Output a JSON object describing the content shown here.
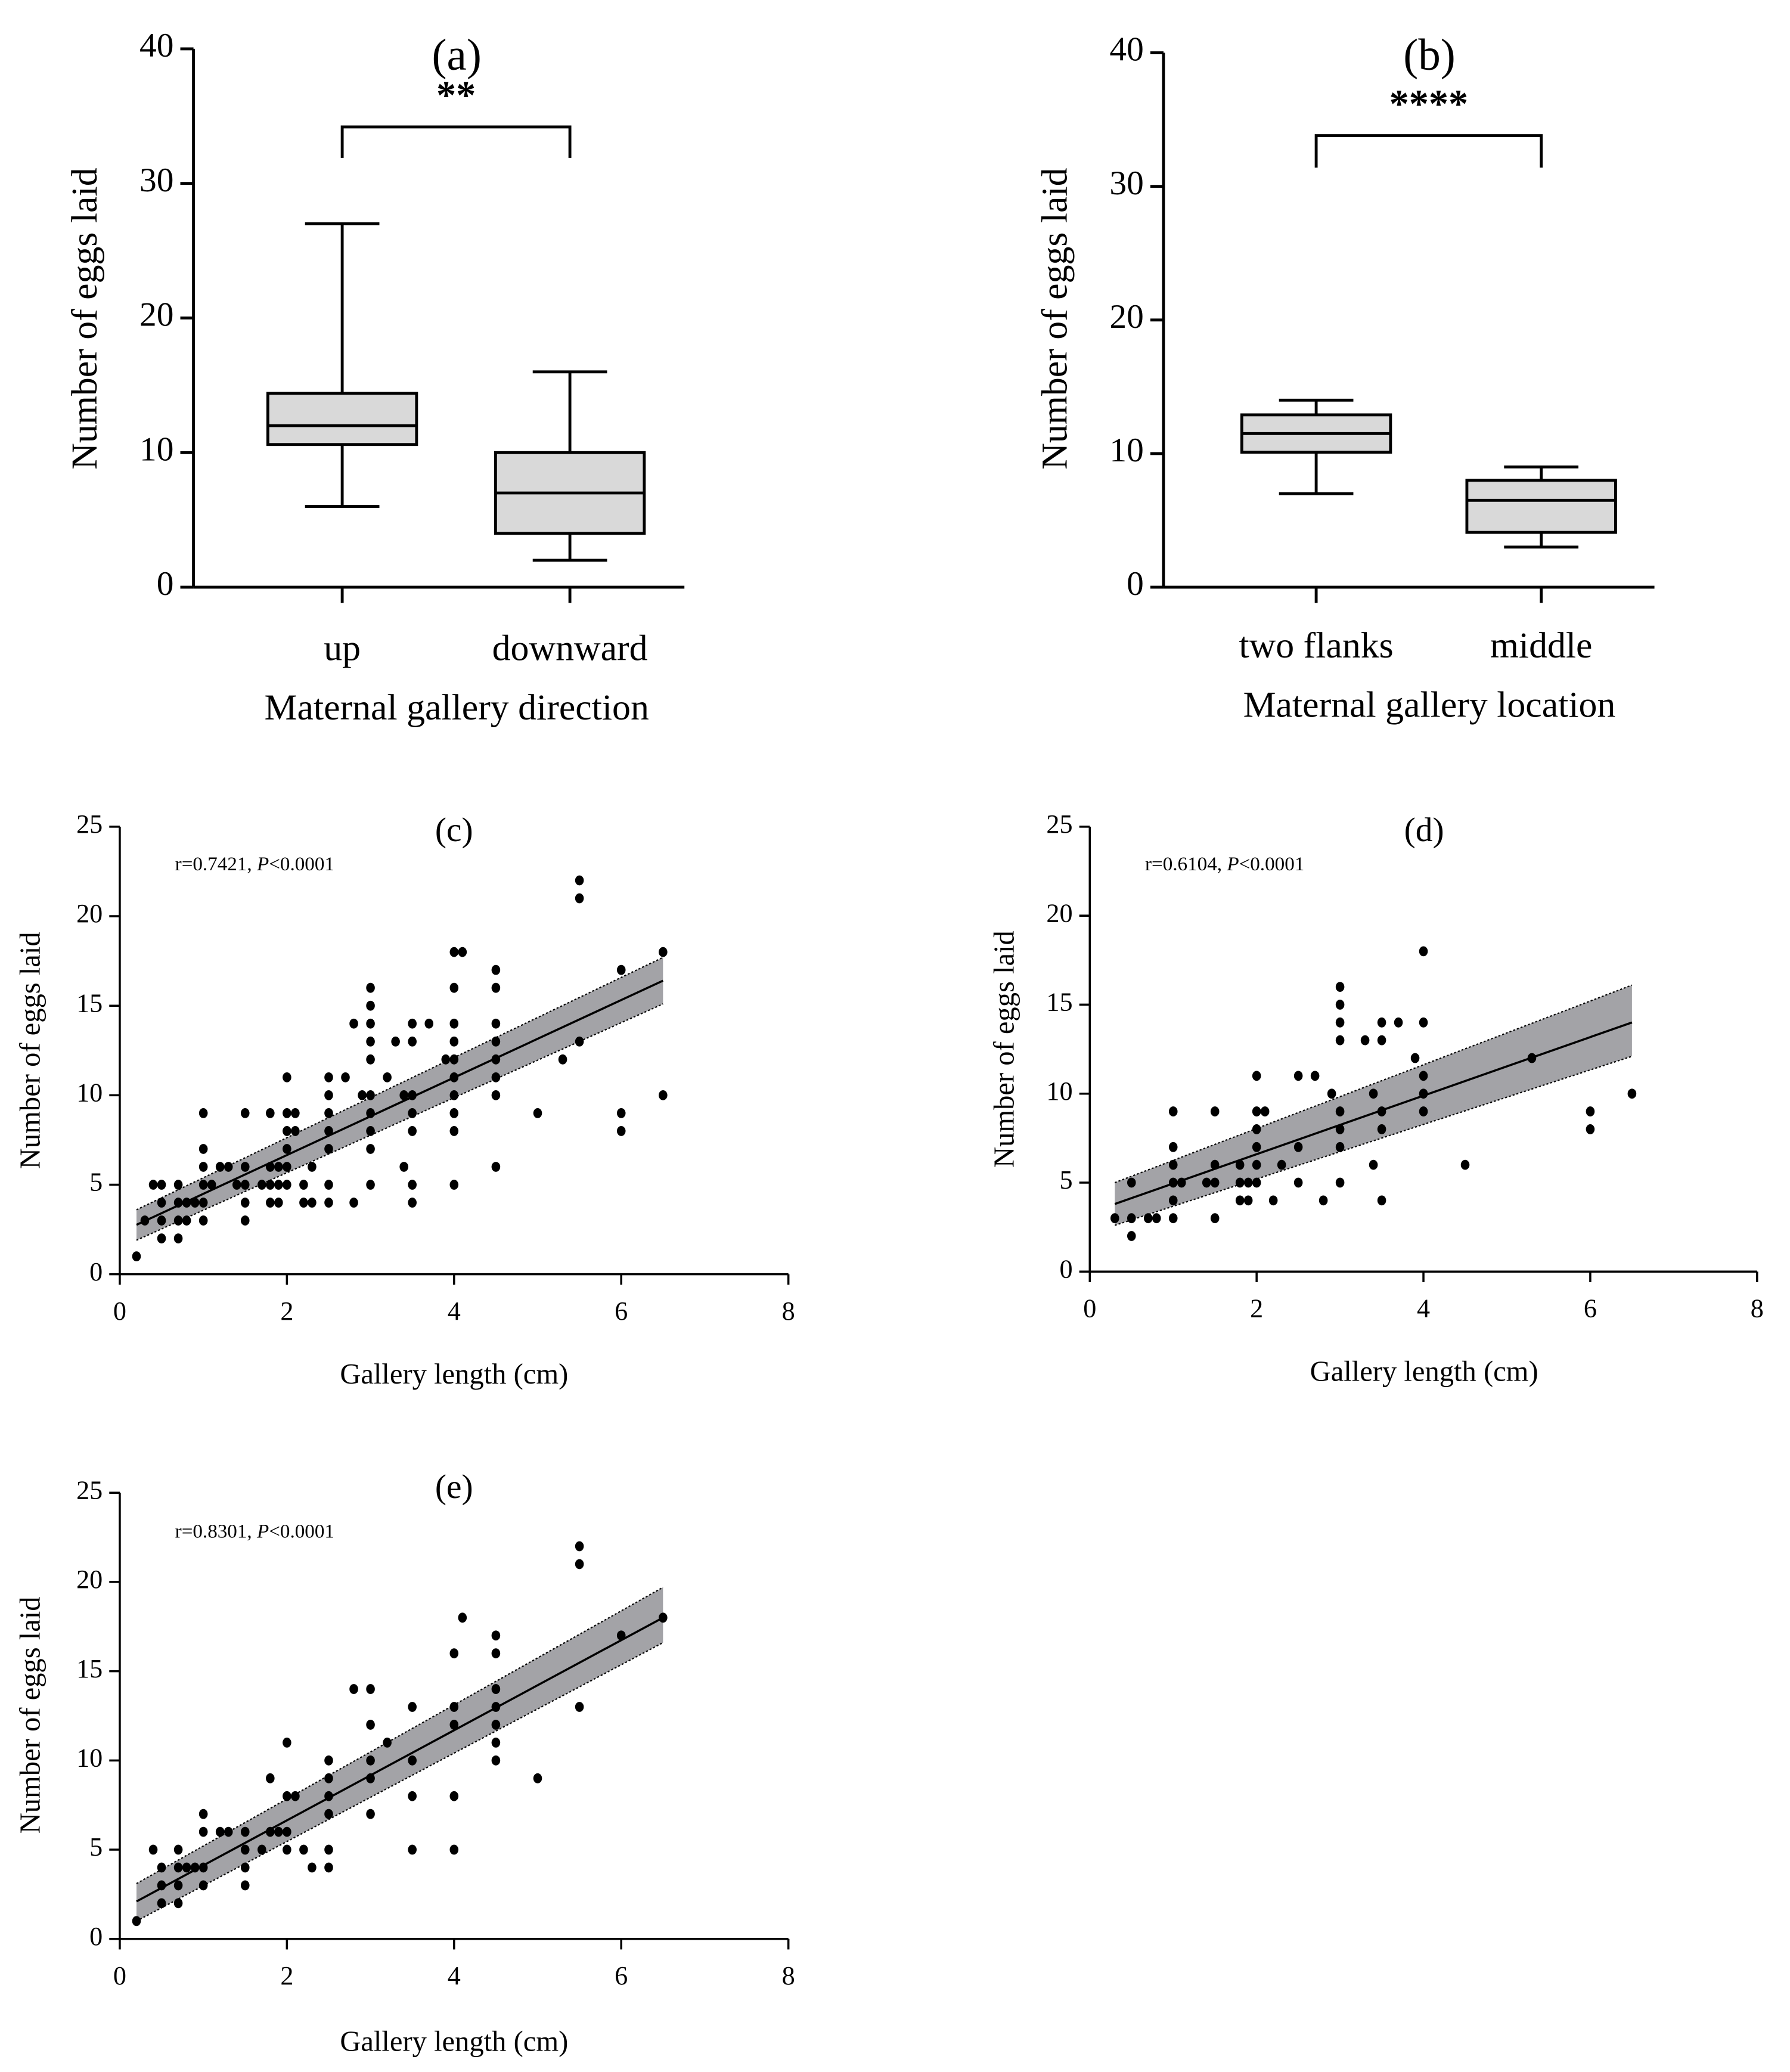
{
  "chart_data": [
    {
      "panel": "(a)",
      "type": "box",
      "ylabel": "Number of eggs laid",
      "xlabel": "Maternal gallery direction",
      "ylim": [
        0,
        40
      ],
      "yticks": [
        0,
        10,
        20,
        30,
        40
      ],
      "categories": [
        "up",
        "downward"
      ],
      "boxes": [
        {
          "min": 6,
          "q1": 10.6,
          "median": 12,
          "q3": 14.4,
          "max": 27
        },
        {
          "min": 2,
          "q1": 4,
          "median": 7,
          "q3": 10,
          "max": 16
        }
      ],
      "significance": {
        "label": "**",
        "level": 34.2,
        "drop": 31.9
      },
      "box_color": "#d9d9d9"
    },
    {
      "panel": "(b)",
      "type": "box",
      "ylabel": "Number of eggs laid",
      "xlabel": "Maternal gallery location",
      "ylim": [
        0,
        40
      ],
      "yticks": [
        0,
        10,
        20,
        30,
        40
      ],
      "categories": [
        "two flanks",
        "middle"
      ],
      "boxes": [
        {
          "min": 7,
          "q1": 10.1,
          "median": 11.5,
          "q3": 12.9,
          "max": 14
        },
        {
          "min": 3,
          "q1": 4.1,
          "median": 6.5,
          "q3": 8,
          "max": 9
        }
      ],
      "significance": {
        "label": "****",
        "level": 33.8,
        "drop": 31.4
      },
      "box_color": "#d9d9d9"
    },
    {
      "panel": "(c)",
      "type": "scatter",
      "annotation_r": "r=0.7421, ",
      "annotation_p": "P",
      "annotation_rest": "<0.0001",
      "xlabel": "Gallery length (cm)",
      "ylabel": "Number of eggs laid",
      "xlim": [
        0,
        8
      ],
      "ylim": [
        0,
        25
      ],
      "xticks": [
        0,
        2,
        4,
        6,
        8
      ],
      "yticks": [
        0,
        5,
        10,
        15,
        20,
        25
      ],
      "fit": {
        "x": [
          0.2,
          6.5
        ],
        "y": [
          2.76,
          16.4
        ],
        "ci_low": [
          1.9,
          15.1
        ],
        "ci_high": [
          3.6,
          17.7
        ]
      },
      "band_color": "#a3a3a7",
      "points": [
        [
          0.2,
          1
        ],
        [
          0.5,
          2
        ],
        [
          0.7,
          2
        ],
        [
          0.3,
          3
        ],
        [
          0.5,
          3
        ],
        [
          0.7,
          3
        ],
        [
          0.8,
          3
        ],
        [
          1.0,
          3
        ],
        [
          1.5,
          3
        ],
        [
          0.5,
          4
        ],
        [
          0.7,
          4
        ],
        [
          0.8,
          4
        ],
        [
          0.9,
          4
        ],
        [
          1.0,
          4
        ],
        [
          1.5,
          4
        ],
        [
          1.8,
          4
        ],
        [
          1.9,
          4
        ],
        [
          2.2,
          4
        ],
        [
          2.3,
          4
        ],
        [
          2.5,
          4
        ],
        [
          2.8,
          4
        ],
        [
          3.5,
          4
        ],
        [
          0.4,
          5
        ],
        [
          0.5,
          5
        ],
        [
          0.7,
          5
        ],
        [
          1.0,
          5
        ],
        [
          1.1,
          5
        ],
        [
          1.4,
          5
        ],
        [
          1.5,
          5
        ],
        [
          1.7,
          5
        ],
        [
          1.8,
          5
        ],
        [
          1.9,
          5
        ],
        [
          2.0,
          5
        ],
        [
          2.2,
          5
        ],
        [
          2.5,
          5
        ],
        [
          3.0,
          5
        ],
        [
          3.5,
          5
        ],
        [
          4.0,
          5
        ],
        [
          1.0,
          6
        ],
        [
          1.2,
          6
        ],
        [
          1.3,
          6
        ],
        [
          1.5,
          6
        ],
        [
          1.8,
          6
        ],
        [
          1.9,
          6
        ],
        [
          2.0,
          6
        ],
        [
          2.3,
          6
        ],
        [
          3.4,
          6
        ],
        [
          4.5,
          6
        ],
        [
          1.0,
          7
        ],
        [
          2.0,
          7
        ],
        [
          2.5,
          7
        ],
        [
          3.0,
          7
        ],
        [
          2.0,
          8
        ],
        [
          2.1,
          8
        ],
        [
          2.5,
          8
        ],
        [
          3.0,
          8
        ],
        [
          3.5,
          8
        ],
        [
          4.0,
          8
        ],
        [
          6.0,
          8
        ],
        [
          1.0,
          9
        ],
        [
          1.5,
          9
        ],
        [
          1.8,
          9
        ],
        [
          2.0,
          9
        ],
        [
          2.1,
          9
        ],
        [
          2.5,
          9
        ],
        [
          3.0,
          9
        ],
        [
          3.5,
          9
        ],
        [
          4.0,
          9
        ],
        [
          5.0,
          9
        ],
        [
          6.0,
          9
        ],
        [
          2.5,
          10
        ],
        [
          2.9,
          10
        ],
        [
          3.0,
          10
        ],
        [
          3.4,
          10
        ],
        [
          3.5,
          10
        ],
        [
          4.0,
          10
        ],
        [
          4.5,
          10
        ],
        [
          6.5,
          10
        ],
        [
          2.0,
          11
        ],
        [
          2.5,
          11
        ],
        [
          2.7,
          11
        ],
        [
          3.2,
          11
        ],
        [
          4.0,
          11
        ],
        [
          4.5,
          11
        ],
        [
          3.0,
          12
        ],
        [
          3.9,
          12
        ],
        [
          4.0,
          12
        ],
        [
          4.5,
          12
        ],
        [
          5.3,
          12
        ],
        [
          3.0,
          13
        ],
        [
          3.3,
          13
        ],
        [
          3.5,
          13
        ],
        [
          4.0,
          13
        ],
        [
          4.5,
          13
        ],
        [
          5.5,
          13
        ],
        [
          2.8,
          14
        ],
        [
          3.0,
          14
        ],
        [
          3.5,
          14
        ],
        [
          3.7,
          14
        ],
        [
          4.0,
          14
        ],
        [
          4.5,
          14
        ],
        [
          3.0,
          15
        ],
        [
          3.0,
          16
        ],
        [
          4.0,
          16
        ],
        [
          4.5,
          16
        ],
        [
          4.5,
          17
        ],
        [
          6.0,
          17
        ],
        [
          4.0,
          18
        ],
        [
          4.1,
          18
        ],
        [
          6.5,
          18
        ],
        [
          5.5,
          21
        ],
        [
          5.5,
          22
        ]
      ]
    },
    {
      "panel": "(d)",
      "type": "scatter",
      "annotation_r": "r=0.6104, ",
      "annotation_p": "P",
      "annotation_rest": "<0.0001",
      "xlabel": "Gallery length (cm)",
      "ylabel": "Number of eggs laid",
      "xlim": [
        0,
        8
      ],
      "ylim": [
        0,
        25
      ],
      "xticks": [
        0,
        2,
        4,
        6,
        8
      ],
      "yticks": [
        0,
        5,
        10,
        15,
        20,
        25
      ],
      "fit": {
        "x": [
          0.3,
          6.5
        ],
        "y": [
          3.8,
          14.0
        ],
        "ci_low": [
          2.6,
          12.1
        ],
        "ci_high": [
          5.0,
          16.1
        ]
      },
      "band_color": "#a3a3a7",
      "points": [
        [
          0.5,
          2
        ],
        [
          0.3,
          3
        ],
        [
          0.5,
          3
        ],
        [
          0.7,
          3
        ],
        [
          0.8,
          3
        ],
        [
          1.0,
          3
        ],
        [
          1.5,
          3
        ],
        [
          1.0,
          4
        ],
        [
          1.8,
          4
        ],
        [
          1.9,
          4
        ],
        [
          2.2,
          4
        ],
        [
          2.8,
          4
        ],
        [
          3.5,
          4
        ],
        [
          0.5,
          5
        ],
        [
          1.0,
          5
        ],
        [
          1.1,
          5
        ],
        [
          1.4,
          5
        ],
        [
          1.5,
          5
        ],
        [
          1.8,
          5
        ],
        [
          1.9,
          5
        ],
        [
          2.0,
          5
        ],
        [
          2.5,
          5
        ],
        [
          3.0,
          5
        ],
        [
          1.0,
          6
        ],
        [
          1.5,
          6
        ],
        [
          1.8,
          6
        ],
        [
          2.0,
          6
        ],
        [
          2.3,
          6
        ],
        [
          3.4,
          6
        ],
        [
          4.5,
          6
        ],
        [
          1.0,
          7
        ],
        [
          2.0,
          7
        ],
        [
          2.5,
          7
        ],
        [
          3.0,
          7
        ],
        [
          2.0,
          8
        ],
        [
          3.0,
          8
        ],
        [
          3.5,
          8
        ],
        [
          6.0,
          8
        ],
        [
          1.0,
          9
        ],
        [
          1.5,
          9
        ],
        [
          2.0,
          9
        ],
        [
          2.1,
          9
        ],
        [
          3.0,
          9
        ],
        [
          3.5,
          9
        ],
        [
          4.0,
          9
        ],
        [
          6.0,
          9
        ],
        [
          2.9,
          10
        ],
        [
          3.4,
          10
        ],
        [
          4.0,
          10
        ],
        [
          6.5,
          10
        ],
        [
          2.0,
          11
        ],
        [
          2.5,
          11
        ],
        [
          2.7,
          11
        ],
        [
          4.0,
          11
        ],
        [
          3.9,
          12
        ],
        [
          5.3,
          12
        ],
        [
          3.0,
          13
        ],
        [
          3.3,
          13
        ],
        [
          3.5,
          13
        ],
        [
          3.0,
          14
        ],
        [
          3.5,
          14
        ],
        [
          3.7,
          14
        ],
        [
          4.0,
          14
        ],
        [
          3.0,
          15
        ],
        [
          3.0,
          16
        ],
        [
          4.0,
          18
        ]
      ]
    },
    {
      "panel": "(e)",
      "type": "scatter",
      "annotation_r": "r=0.8301, ",
      "annotation_p": "P",
      "annotation_rest": "<0.0001",
      "xlabel": "Gallery length (cm)",
      "ylabel": "Number of eggs laid",
      "xlim": [
        0,
        8
      ],
      "ylim": [
        0,
        25
      ],
      "xticks": [
        0,
        2,
        4,
        6,
        8
      ],
      "yticks": [
        0,
        5,
        10,
        15,
        20,
        25
      ],
      "fit": {
        "x": [
          0.2,
          6.5
        ],
        "y": [
          2.1,
          18.0
        ],
        "ci_low": [
          1.0,
          16.6
        ],
        "ci_high": [
          3.1,
          19.7
        ]
      },
      "band_color": "#a3a3a7",
      "points": [
        [
          0.2,
          1
        ],
        [
          0.5,
          2
        ],
        [
          0.7,
          2
        ],
        [
          0.5,
          3
        ],
        [
          0.7,
          3
        ],
        [
          1.0,
          3
        ],
        [
          1.5,
          3
        ],
        [
          0.5,
          4
        ],
        [
          0.7,
          4
        ],
        [
          0.8,
          4
        ],
        [
          0.9,
          4
        ],
        [
          1.0,
          4
        ],
        [
          1.5,
          4
        ],
        [
          2.3,
          4
        ],
        [
          2.5,
          4
        ],
        [
          0.4,
          5
        ],
        [
          0.7,
          5
        ],
        [
          1.5,
          5
        ],
        [
          1.7,
          5
        ],
        [
          2.0,
          5
        ],
        [
          2.2,
          5
        ],
        [
          2.5,
          5
        ],
        [
          3.5,
          5
        ],
        [
          4.0,
          5
        ],
        [
          1.0,
          6
        ],
        [
          1.2,
          6
        ],
        [
          1.3,
          6
        ],
        [
          1.5,
          6
        ],
        [
          1.8,
          6
        ],
        [
          1.9,
          6
        ],
        [
          2.0,
          6
        ],
        [
          1.0,
          7
        ],
        [
          2.5,
          7
        ],
        [
          3.0,
          7
        ],
        [
          2.0,
          8
        ],
        [
          2.1,
          8
        ],
        [
          2.5,
          8
        ],
        [
          3.5,
          8
        ],
        [
          4.0,
          8
        ],
        [
          1.8,
          9
        ],
        [
          2.5,
          9
        ],
        [
          3.0,
          9
        ],
        [
          5.0,
          9
        ],
        [
          2.5,
          10
        ],
        [
          3.0,
          10
        ],
        [
          3.5,
          10
        ],
        [
          4.5,
          10
        ],
        [
          2.0,
          11
        ],
        [
          3.2,
          11
        ],
        [
          4.5,
          11
        ],
        [
          3.0,
          12
        ],
        [
          4.0,
          12
        ],
        [
          4.5,
          12
        ],
        [
          3.5,
          13
        ],
        [
          4.0,
          13
        ],
        [
          4.5,
          13
        ],
        [
          5.5,
          13
        ],
        [
          2.8,
          14
        ],
        [
          3.0,
          14
        ],
        [
          4.5,
          14
        ],
        [
          4.0,
          16
        ],
        [
          4.5,
          16
        ],
        [
          4.5,
          17
        ],
        [
          6.0,
          17
        ],
        [
          4.1,
          18
        ],
        [
          6.5,
          18
        ],
        [
          5.5,
          21
        ],
        [
          5.5,
          22
        ]
      ]
    }
  ]
}
